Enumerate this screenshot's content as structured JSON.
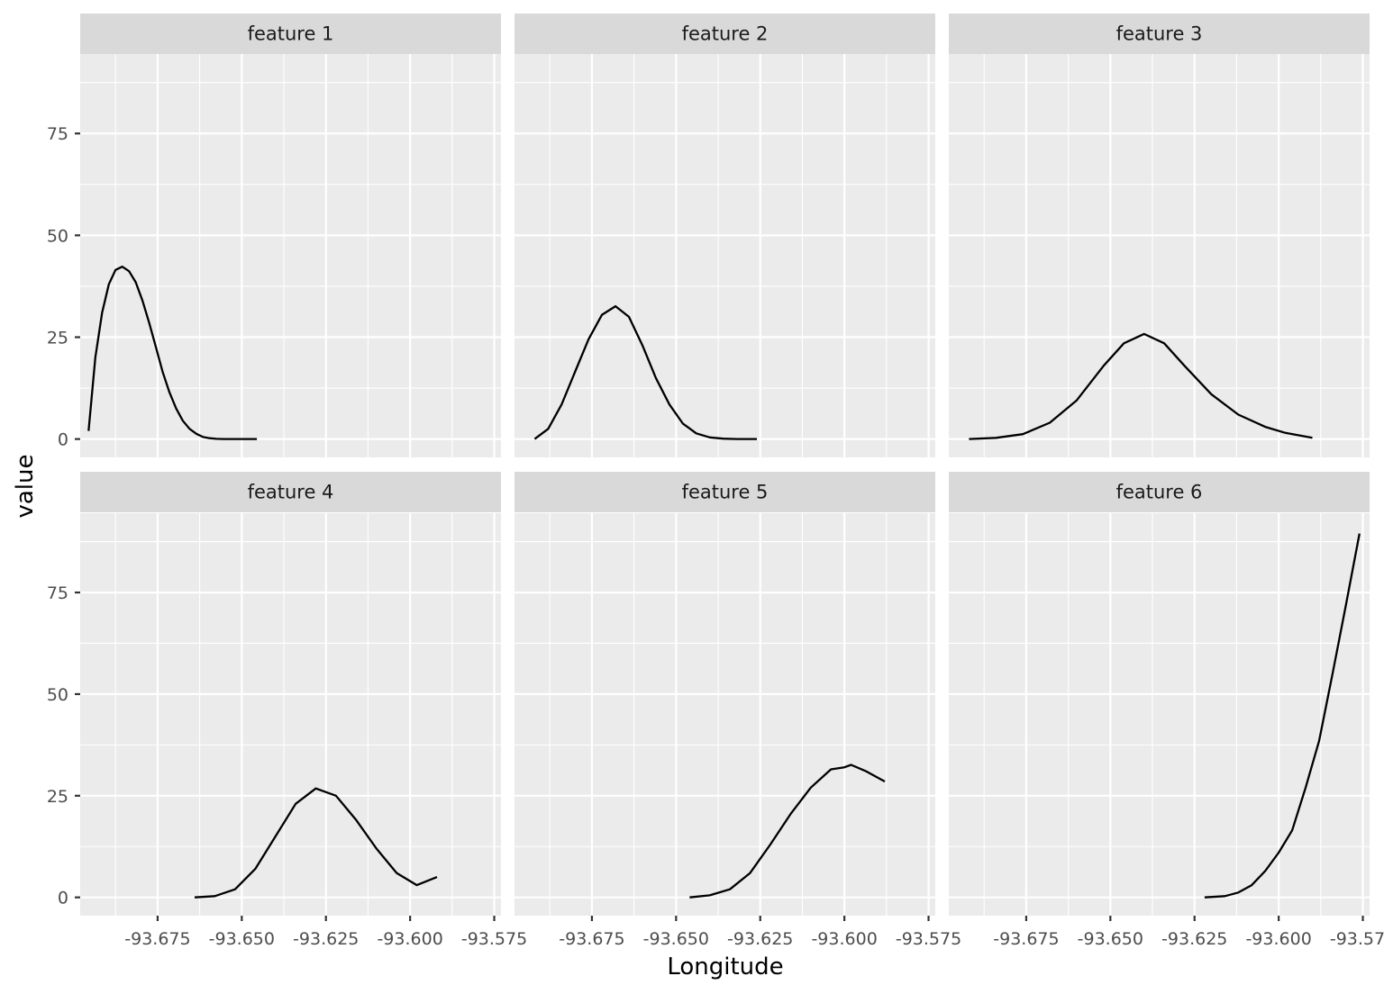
{
  "chart_data": {
    "type": "line",
    "layout": "facet_wrap",
    "xlabel": "Longitude",
    "ylabel": "value",
    "xlim": [
      -93.698,
      -93.573
    ],
    "ylim": [
      -4.5,
      94.5
    ],
    "x_ticks": [
      -93.675,
      -93.65,
      -93.625,
      -93.6,
      -93.575
    ],
    "x_tick_labels": [
      "-93.675",
      "-93.650",
      "-93.625",
      "-93.600",
      "-93.575"
    ],
    "y_ticks": [
      0,
      25,
      50,
      75
    ],
    "y_tick_labels": [
      "0",
      "25",
      "50",
      "75"
    ],
    "grid": true,
    "panels": [
      {
        "title": "feature 1",
        "x": [
          -93.6955,
          -93.6935,
          -93.6915,
          -93.6895,
          -93.6875,
          -93.6855,
          -93.6835,
          -93.6815,
          -93.6795,
          -93.6775,
          -93.6755,
          -93.6735,
          -93.6715,
          -93.6695,
          -93.6675,
          -93.6655,
          -93.6635,
          -93.6615,
          -93.6595,
          -93.6575,
          -93.6555,
          -93.6535,
          -93.6515,
          -93.6495,
          -93.6475,
          -93.6455
        ],
        "y": [
          2,
          20,
          31,
          38,
          41.5,
          42.3,
          41.2,
          38.5,
          34,
          28.5,
          22.5,
          16.5,
          11.5,
          7.5,
          4.5,
          2.5,
          1.3,
          0.5,
          0.2,
          0.05,
          0,
          0,
          0,
          0,
          0,
          0
        ]
      },
      {
        "title": "feature 2",
        "x": [
          -93.692,
          -93.688,
          -93.684,
          -93.68,
          -93.676,
          -93.672,
          -93.668,
          -93.664,
          -93.66,
          -93.656,
          -93.652,
          -93.648,
          -93.644,
          -93.64,
          -93.636,
          -93.632,
          -93.628,
          -93.626
        ],
        "y": [
          0,
          2.5,
          8.5,
          16.5,
          24.5,
          30.5,
          32.6,
          30,
          23,
          15,
          8.5,
          3.8,
          1.4,
          0.4,
          0.1,
          0,
          0,
          0
        ]
      },
      {
        "title": "feature 3",
        "x": [
          -93.692,
          -93.684,
          -93.676,
          -93.668,
          -93.66,
          -93.652,
          -93.646,
          -93.64,
          -93.634,
          -93.628,
          -93.62,
          -93.612,
          -93.604,
          -93.598,
          -93.59
        ],
        "y": [
          0,
          0.3,
          1.2,
          4,
          9.5,
          18,
          23.5,
          25.8,
          23.5,
          18,
          11,
          6,
          3,
          1.5,
          0.3
        ]
      },
      {
        "title": "feature 4",
        "x": [
          -93.664,
          -93.658,
          -93.652,
          -93.646,
          -93.64,
          -93.634,
          -93.628,
          -93.622,
          -93.616,
          -93.61,
          -93.604,
          -93.598,
          -93.592
        ],
        "y": [
          0,
          0.3,
          2,
          7,
          15,
          23,
          26.8,
          25,
          19,
          12,
          6,
          3,
          5
        ]
      },
      {
        "title": "feature 5",
        "x": [
          -93.646,
          -93.64,
          -93.634,
          -93.628,
          -93.622,
          -93.616,
          -93.61,
          -93.604,
          -93.6,
          -93.598,
          -93.5935,
          -93.588
        ],
        "y": [
          0,
          0.5,
          2,
          6,
          13,
          20.5,
          27,
          31.5,
          32,
          32.6,
          31,
          28.5
        ]
      },
      {
        "title": "feature 6",
        "x": [
          -93.622,
          -93.616,
          -93.612,
          -93.608,
          -93.604,
          -93.6,
          -93.596,
          -93.592,
          -93.588,
          -93.584,
          -93.58,
          -93.576
        ],
        "y": [
          0,
          0.3,
          1.2,
          3,
          6.5,
          11,
          16.5,
          27,
          38.5,
          55,
          72,
          89.5
        ]
      }
    ]
  }
}
